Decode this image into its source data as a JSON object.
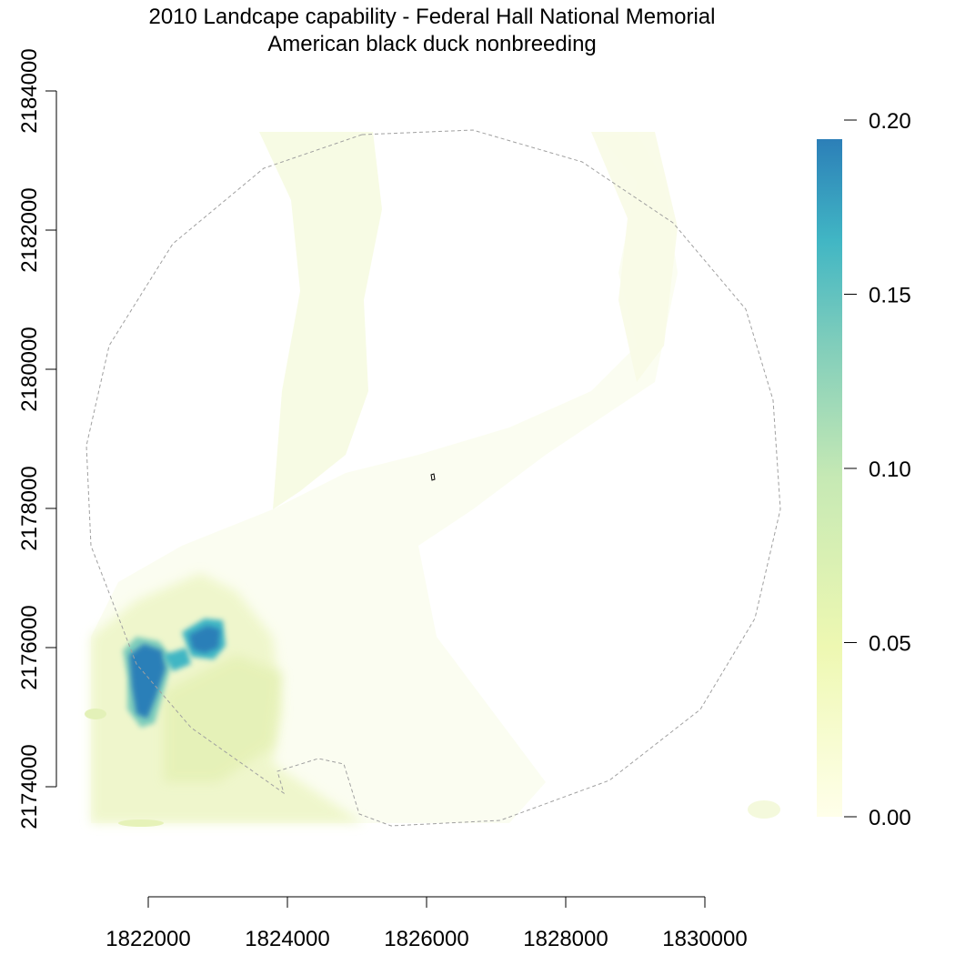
{
  "title": {
    "line1": "2010 Landcape capability - Federal Hall National Memorial",
    "line2": "American black duck nonbreeding"
  },
  "map": {
    "x_axis": {
      "ticks": [
        1822000,
        1824000,
        1826000,
        1828000,
        1830000
      ],
      "labels": [
        "1822000",
        "1824000",
        "1826000",
        "1828000",
        "1830000"
      ]
    },
    "y_axis": {
      "ticks": [
        2174000,
        2176000,
        2178000,
        2180000,
        2182000,
        2184000
      ],
      "labels": [
        "2174000",
        "2176000",
        "2178000",
        "2180000",
        "2182000",
        "2184000"
      ]
    },
    "buffer_outline": "dashed grey",
    "park_outline": "small black polygon near center"
  },
  "legend": {
    "ticks": [
      0.0,
      0.05,
      0.1,
      0.15,
      0.2
    ],
    "labels": [
      "0.00",
      "0.05",
      "0.10",
      "0.15",
      "0.20"
    ],
    "min": 0.0,
    "max": 0.2,
    "colors": [
      "#ffffea",
      "#eef8b2",
      "#c6e9b4",
      "#7fcdbb",
      "#41b6c4",
      "#2c7fb8"
    ]
  }
}
